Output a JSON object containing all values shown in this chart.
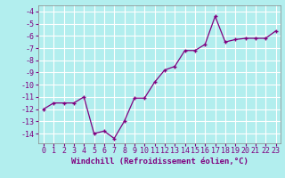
{
  "x": [
    0,
    1,
    2,
    3,
    4,
    5,
    6,
    7,
    8,
    9,
    10,
    11,
    12,
    13,
    14,
    15,
    16,
    17,
    18,
    19,
    20,
    21,
    22,
    23
  ],
  "y": [
    -12,
    -11.5,
    -11.5,
    -11.5,
    -11.0,
    -14.0,
    -13.8,
    -14.4,
    -13.0,
    -11.1,
    -11.1,
    -9.8,
    -8.8,
    -8.5,
    -7.2,
    -7.2,
    -6.7,
    -4.4,
    -6.5,
    -6.3,
    -6.2,
    -6.2,
    -6.2,
    -5.6
  ],
  "line_color": "#800080",
  "marker": "+",
  "bg_color": "#b2eeee",
  "grid_color": "#ffffff",
  "xlabel": "Windchill (Refroidissement éolien,°C)",
  "ylim": [
    -14.8,
    -3.5
  ],
  "xlim": [
    -0.5,
    23.5
  ],
  "yticks": [
    -14,
    -13,
    -12,
    -11,
    -10,
    -9,
    -8,
    -7,
    -6,
    -5,
    -4
  ],
  "xticks": [
    0,
    1,
    2,
    3,
    4,
    5,
    6,
    7,
    8,
    9,
    10,
    11,
    12,
    13,
    14,
    15,
    16,
    17,
    18,
    19,
    20,
    21,
    22,
    23
  ],
  "tick_color": "#800080",
  "label_fontsize": 6.5,
  "tick_fontsize": 6.0
}
